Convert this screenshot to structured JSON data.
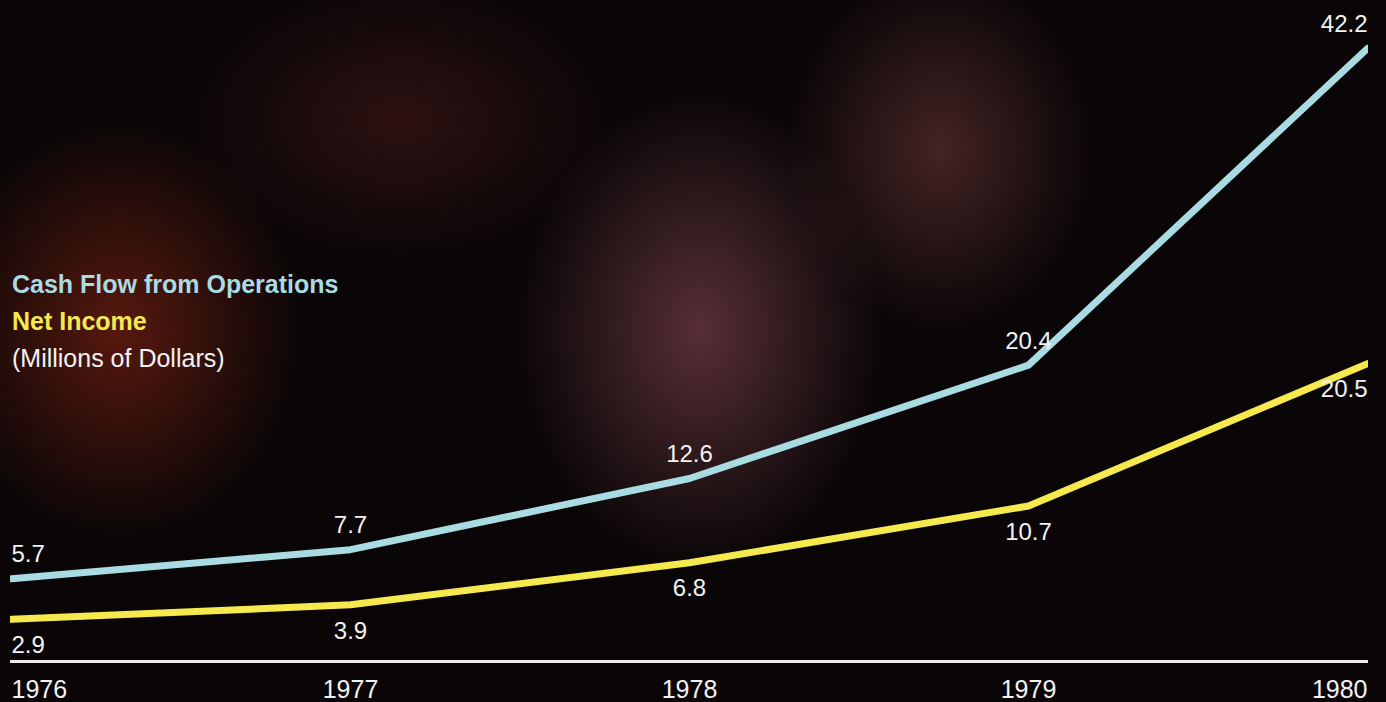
{
  "chart_data": {
    "type": "line",
    "categories": [
      "1976",
      "1977",
      "1978",
      "1979",
      "1980"
    ],
    "series": [
      {
        "name": "Cash Flow from Operations",
        "color": "#a9dbe3",
        "values": [
          5.7,
          7.7,
          12.6,
          20.4,
          42.2
        ]
      },
      {
        "name": "Net Income",
        "color": "#f5e94e",
        "values": [
          2.9,
          3.9,
          6.8,
          10.7,
          20.5
        ]
      }
    ],
    "y_label": "(Millions of Dollars)",
    "ylim": [
      0,
      45.5
    ],
    "data_labels": true,
    "tick_labels": "x",
    "legend": "left"
  }
}
